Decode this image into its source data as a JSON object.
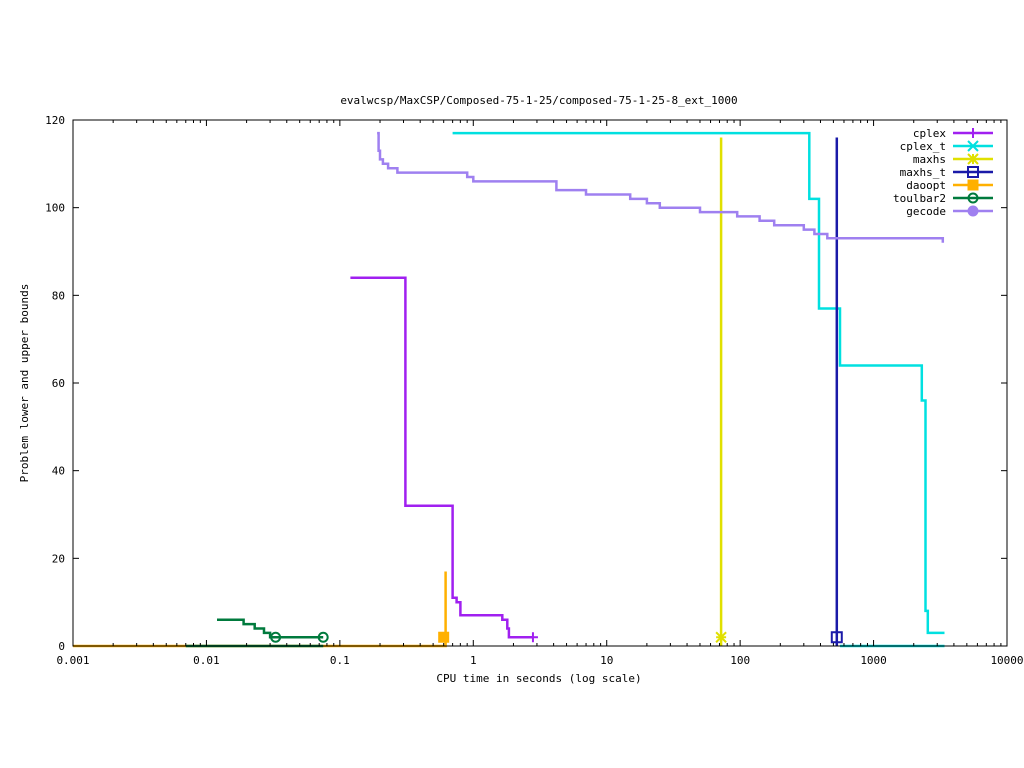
{
  "chart_data": {
    "type": "line",
    "title": "evalwcsp/MaxCSP/Composed-75-1-25/composed-75-1-25-8_ext_1000",
    "xlabel": "CPU time in seconds (log scale)",
    "ylabel": "Problem lower and upper bounds",
    "x_scale": "log",
    "xlim": [
      0.001,
      10000
    ],
    "ylim": [
      0,
      120
    ],
    "x_ticks": [
      0.001,
      0.01,
      0.1,
      1,
      10,
      100,
      1000,
      10000
    ],
    "x_tick_labels": [
      "0.001",
      "0.01",
      "0.1",
      "1",
      "10",
      "100",
      "1000",
      "10000"
    ],
    "y_ticks": [
      0,
      20,
      40,
      60,
      80,
      100,
      120
    ],
    "y_tick_labels": [
      "0",
      "20",
      "40",
      "60",
      "80",
      "100",
      "120"
    ],
    "grid": false,
    "legend_position": "top-right",
    "series": [
      {
        "name": "cplex",
        "color": "#a020f0",
        "marker": "plus",
        "points": [
          [
            0.12,
            84
          ],
          [
            0.31,
            84
          ],
          [
            0.31,
            32
          ],
          [
            0.7,
            32
          ],
          [
            0.7,
            11
          ],
          [
            0.75,
            11
          ],
          [
            0.75,
            10
          ],
          [
            0.8,
            10
          ],
          [
            0.8,
            7
          ],
          [
            1.65,
            7
          ],
          [
            1.65,
            6
          ],
          [
            1.8,
            6
          ],
          [
            1.8,
            4
          ],
          [
            1.85,
            4
          ],
          [
            1.85,
            2
          ],
          [
            2.8,
            2
          ]
        ],
        "marker_points": [
          [
            2.8,
            2
          ]
        ]
      },
      {
        "name": "cplex_t",
        "color": "#00e0e0",
        "marker": "cross",
        "points": [
          [
            0.7,
            117
          ],
          [
            330,
            117
          ],
          [
            330,
            102
          ],
          [
            390,
            102
          ],
          [
            390,
            77
          ],
          [
            560,
            77
          ],
          [
            560,
            64
          ],
          [
            2300,
            64
          ],
          [
            2300,
            56
          ],
          [
            2450,
            56
          ],
          [
            2450,
            8
          ],
          [
            2550,
            8
          ],
          [
            2550,
            3
          ],
          [
            3400,
            3
          ]
        ],
        "points2": [
          [
            560,
            0
          ],
          [
            3400,
            0
          ]
        ],
        "marker_points": []
      },
      {
        "name": "maxhs",
        "color": "#e0e000",
        "marker": "star",
        "points": [
          [
            72,
            116
          ],
          [
            72,
            0
          ]
        ],
        "marker_points": [
          [
            72,
            2
          ]
        ]
      },
      {
        "name": "maxhs_t",
        "color": "#1a1aa8",
        "marker": "square",
        "points": [
          [
            530,
            116
          ],
          [
            530,
            0
          ]
        ],
        "marker_points": [
          [
            530,
            2
          ]
        ]
      },
      {
        "name": "daoopt",
        "color": "#ffb000",
        "marker": "filled-square",
        "points": [
          [
            0.001,
            0
          ],
          [
            0.62,
            0
          ],
          [
            0.62,
            17
          ],
          [
            0.62,
            2
          ]
        ],
        "marker_points": [
          [
            0.6,
            2
          ]
        ]
      },
      {
        "name": "toulbar2",
        "color": "#007a3d",
        "marker": "circle",
        "points": [
          [
            0.012,
            6
          ],
          [
            0.019,
            6
          ],
          [
            0.019,
            5
          ],
          [
            0.023,
            5
          ],
          [
            0.023,
            4
          ],
          [
            0.027,
            4
          ],
          [
            0.027,
            3
          ],
          [
            0.03,
            3
          ],
          [
            0.03,
            2
          ],
          [
            0.075,
            2
          ]
        ],
        "points2": [
          [
            0.007,
            0
          ],
          [
            0.075,
            0
          ]
        ],
        "marker_points": [
          [
            0.033,
            2
          ],
          [
            0.075,
            2
          ]
        ]
      },
      {
        "name": "gecode",
        "color": "#9f80f0",
        "marker": "filled-circle",
        "points": [
          [
            0.19,
            117
          ],
          [
            0.195,
            117
          ],
          [
            0.195,
            113
          ],
          [
            0.2,
            113
          ],
          [
            0.2,
            111
          ],
          [
            0.21,
            111
          ],
          [
            0.21,
            110
          ],
          [
            0.23,
            110
          ],
          [
            0.23,
            109
          ],
          [
            0.27,
            109
          ],
          [
            0.27,
            108
          ],
          [
            0.9,
            108
          ],
          [
            0.9,
            107
          ],
          [
            1.0,
            107
          ],
          [
            1.0,
            106
          ],
          [
            4.2,
            106
          ],
          [
            4.2,
            104
          ],
          [
            7.0,
            104
          ],
          [
            7.0,
            103
          ],
          [
            15,
            103
          ],
          [
            15,
            102
          ],
          [
            20,
            102
          ],
          [
            20,
            101
          ],
          [
            25,
            101
          ],
          [
            25,
            100
          ],
          [
            50,
            100
          ],
          [
            50,
            99
          ],
          [
            95,
            99
          ],
          [
            95,
            98
          ],
          [
            140,
            98
          ],
          [
            140,
            97
          ],
          [
            180,
            97
          ],
          [
            180,
            96
          ],
          [
            300,
            96
          ],
          [
            300,
            95
          ],
          [
            360,
            95
          ],
          [
            360,
            94
          ],
          [
            450,
            94
          ],
          [
            450,
            93
          ],
          [
            3300,
            93
          ],
          [
            3300,
            92
          ]
        ],
        "marker_points": []
      }
    ]
  }
}
